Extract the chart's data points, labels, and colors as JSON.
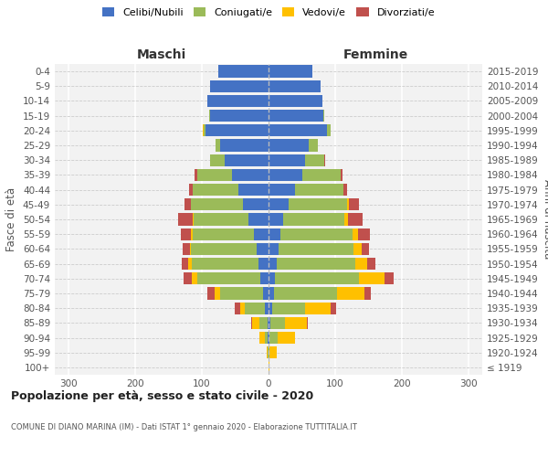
{
  "age_groups": [
    "100+",
    "95-99",
    "90-94",
    "85-89",
    "80-84",
    "75-79",
    "70-74",
    "65-69",
    "60-64",
    "55-59",
    "50-54",
    "45-49",
    "40-44",
    "35-39",
    "30-34",
    "25-29",
    "20-24",
    "15-19",
    "10-14",
    "5-9",
    "0-4"
  ],
  "birth_years": [
    "≤ 1919",
    "1920-1924",
    "1925-1929",
    "1930-1934",
    "1935-1939",
    "1940-1944",
    "1945-1949",
    "1950-1954",
    "1955-1959",
    "1960-1964",
    "1965-1969",
    "1970-1974",
    "1975-1979",
    "1980-1984",
    "1985-1989",
    "1990-1994",
    "1995-1999",
    "2000-2004",
    "2005-2009",
    "2010-2014",
    "2015-2019"
  ],
  "colors": {
    "celibe": "#4472C4",
    "coniugato": "#9BBB59",
    "vedovo": "#FFC000",
    "divorziato": "#C0504D"
  },
  "maschi": {
    "celibe": [
      0,
      0,
      1,
      2,
      5,
      8,
      12,
      15,
      18,
      22,
      30,
      38,
      45,
      55,
      65,
      72,
      95,
      88,
      92,
      88,
      75
    ],
    "coniugato": [
      0,
      1,
      5,
      12,
      30,
      65,
      95,
      100,
      98,
      92,
      82,
      78,
      68,
      52,
      22,
      8,
      2,
      1,
      0,
      0,
      0
    ],
    "vedovo": [
      0,
      2,
      8,
      10,
      8,
      8,
      8,
      5,
      2,
      2,
      1,
      0,
      0,
      0,
      0,
      0,
      2,
      0,
      0,
      0,
      0
    ],
    "divorziato": [
      0,
      0,
      0,
      2,
      8,
      10,
      12,
      10,
      10,
      15,
      22,
      10,
      6,
      4,
      1,
      0,
      0,
      0,
      0,
      0,
      0
    ]
  },
  "femmine": {
    "celibe": [
      0,
      0,
      2,
      3,
      5,
      8,
      10,
      12,
      15,
      18,
      22,
      30,
      40,
      50,
      55,
      60,
      88,
      82,
      80,
      78,
      65
    ],
    "coniugato": [
      0,
      2,
      12,
      22,
      50,
      95,
      125,
      118,
      112,
      108,
      92,
      88,
      72,
      58,
      28,
      14,
      5,
      2,
      0,
      0,
      0
    ],
    "vedovo": [
      1,
      10,
      25,
      32,
      38,
      40,
      38,
      18,
      12,
      8,
      5,
      2,
      0,
      0,
      0,
      0,
      0,
      0,
      0,
      0,
      0
    ],
    "divorziato": [
      0,
      0,
      0,
      2,
      8,
      10,
      15,
      12,
      12,
      18,
      22,
      15,
      5,
      3,
      2,
      0,
      0,
      0,
      0,
      0,
      0
    ]
  },
  "title": "Popolazione per età, sesso e stato civile - 2020",
  "subtitle": "COMUNE DI DIANO MARINA (IM) - Dati ISTAT 1° gennaio 2020 - Elaborazione TUTTITALIA.IT",
  "maschi_label": "Maschi",
  "femmine_label": "Femmine",
  "ylabel_left": "Fasce di età",
  "xlim": 320,
  "xticks": [
    -300,
    -200,
    -100,
    0,
    100,
    200,
    300
  ],
  "legend_labels": [
    "Celibi/Nubili",
    "Coniugati/e",
    "Vedovi/e",
    "Divorziati/e"
  ],
  "bg_color": "#f2f2f2",
  "grid_color": "#ffffff",
  "dashed_line_color": "#cccccc"
}
